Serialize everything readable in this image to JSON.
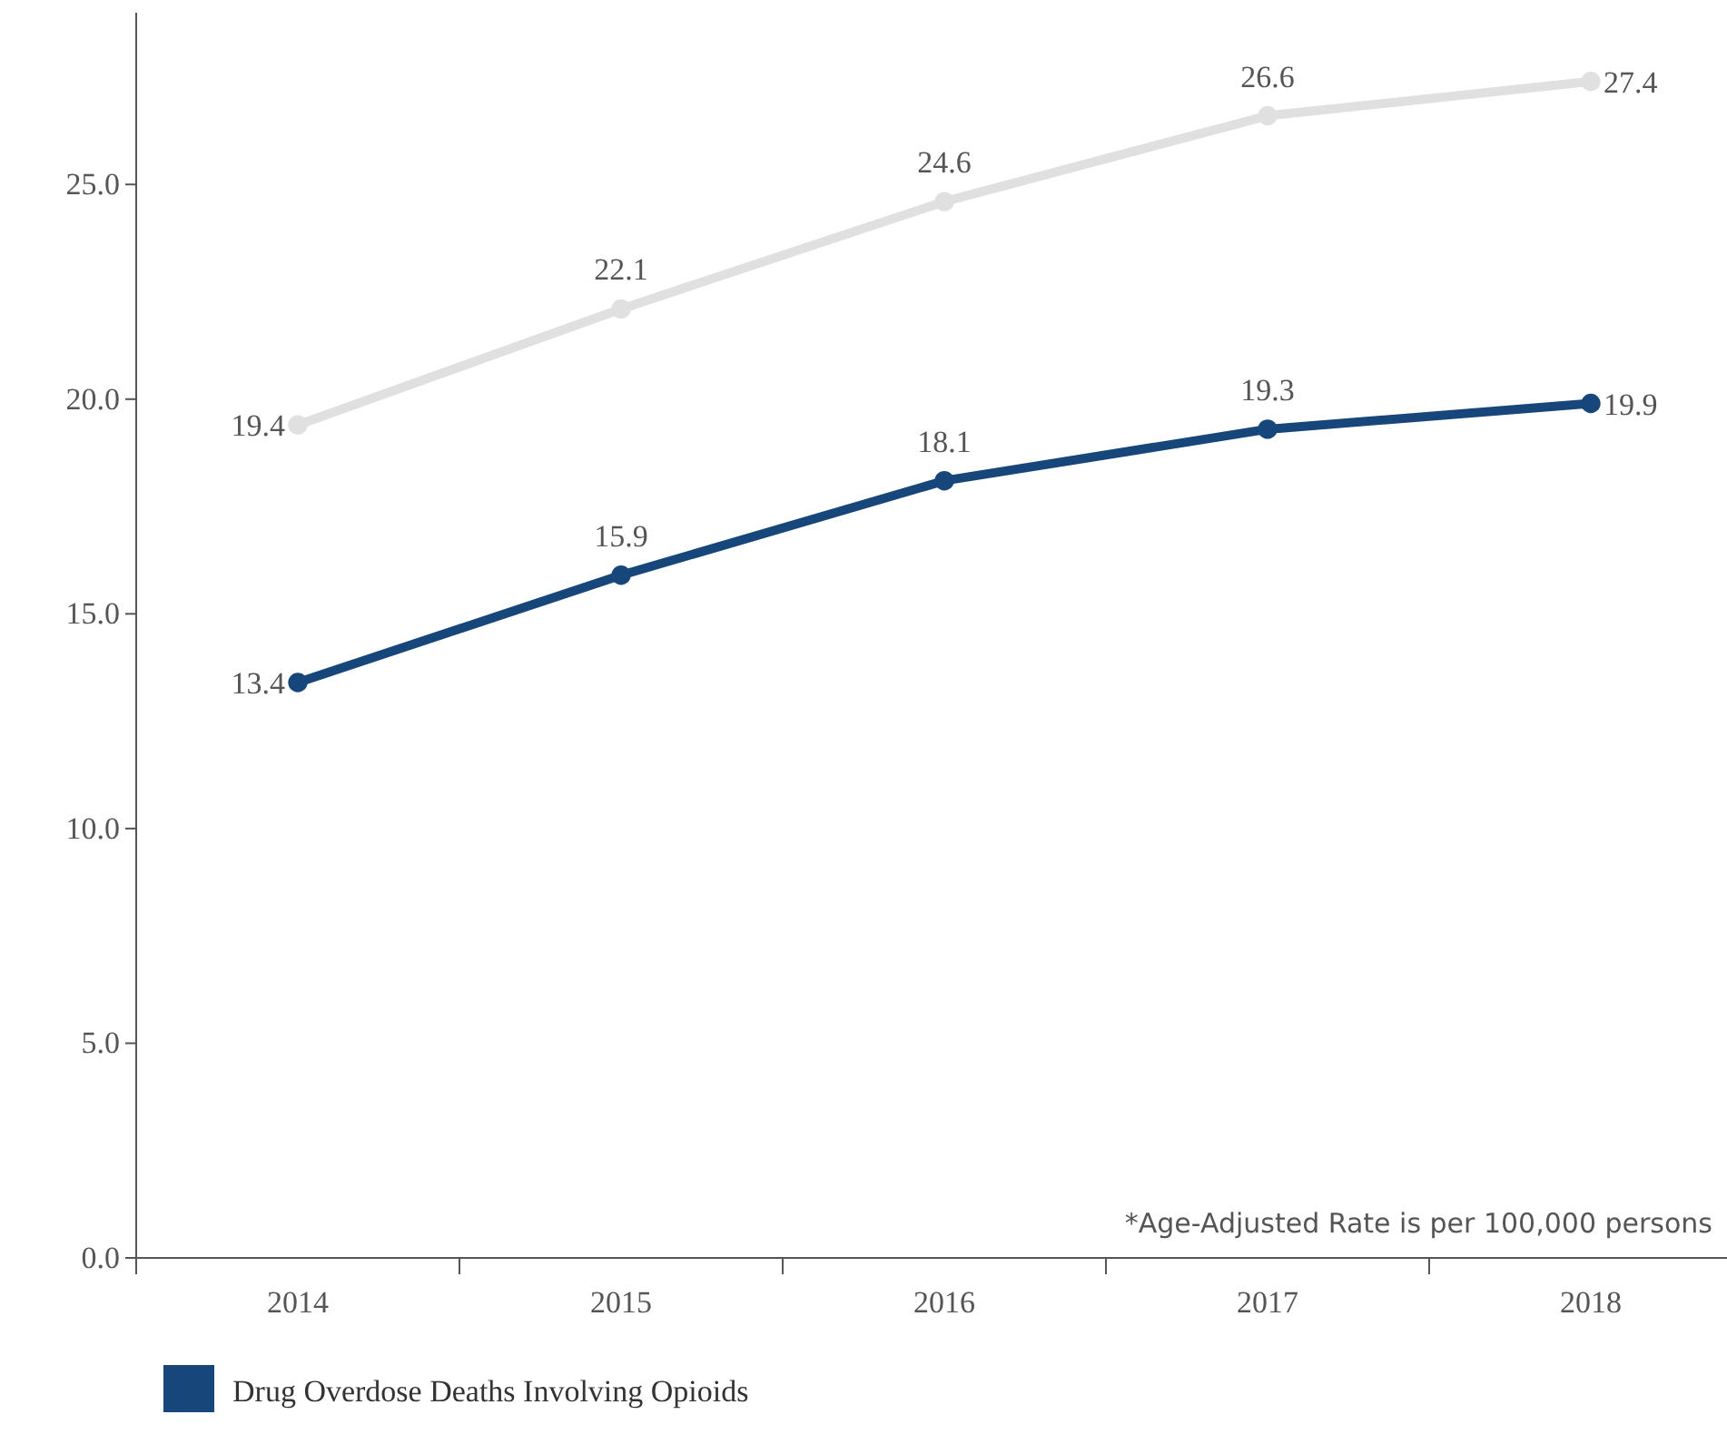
{
  "chart_data": {
    "type": "line",
    "categories": [
      "2014",
      "2015",
      "2016",
      "2017",
      "2018"
    ],
    "series": [
      {
        "color": "#e0e0e0",
        "values": [
          19.4,
          22.1,
          24.6,
          26.6,
          27.4
        ]
      },
      {
        "name": "Drug Overdose Deaths Involving Opioids",
        "color": "#17467a",
        "values": [
          13.4,
          15.9,
          18.1,
          19.3,
          19.9
        ]
      }
    ],
    "ylim": [
      0,
      29
    ],
    "yticks": [
      {
        "value": 0,
        "label": "0.0"
      },
      {
        "value": 5,
        "label": "5.0"
      },
      {
        "value": 10,
        "label": "10.0"
      },
      {
        "value": 15,
        "label": "15.0"
      },
      {
        "value": 20,
        "label": "20.0"
      },
      {
        "value": 25,
        "label": "25.0"
      }
    ],
    "data_labels": true,
    "marker": "circle",
    "line_style": "solid",
    "grid": false,
    "legend": "bottom left",
    "annotations": [
      "*Age-Adjusted Rate is per 100,000 persons"
    ]
  }
}
